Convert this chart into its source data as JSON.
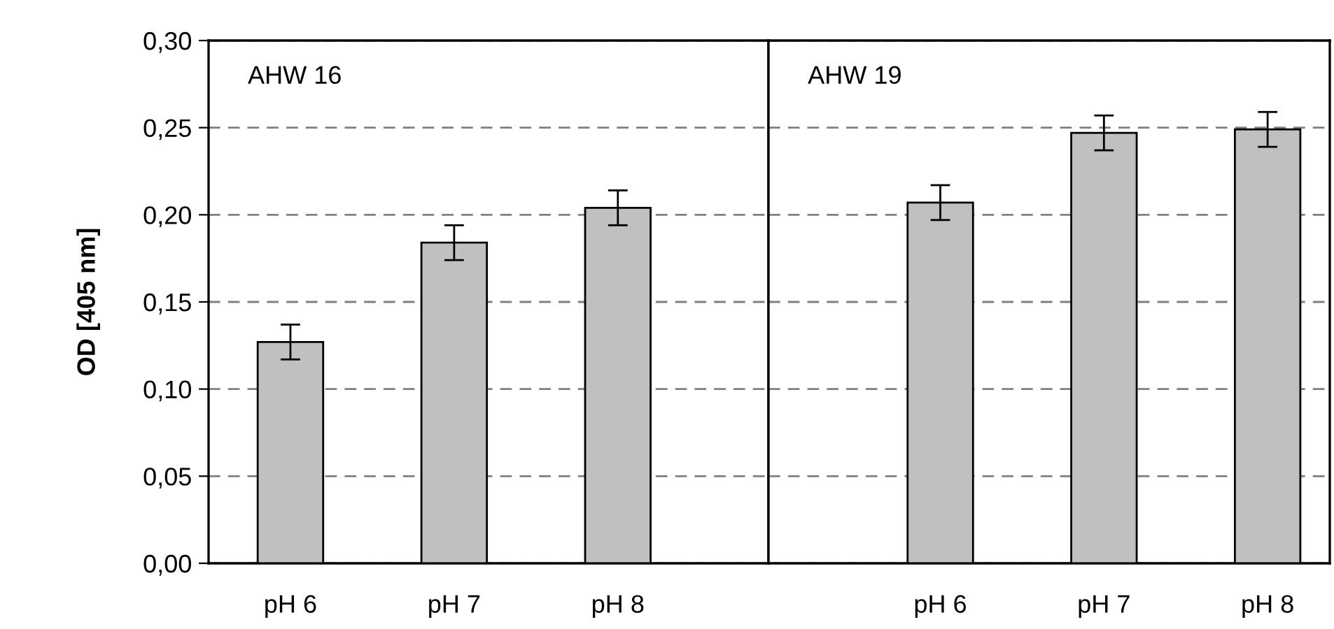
{
  "chart_data": [
    {
      "type": "bar",
      "title": "AHW 16",
      "ylabel": "OD [405 nm]",
      "categories": [
        "pH 6",
        "pH 7",
        "pH 8"
      ],
      "values": [
        0.127,
        0.184,
        0.204
      ],
      "errors": [
        0.01,
        0.01,
        0.01
      ],
      "color": "#c0c0c0",
      "ylim": [
        0,
        0.3
      ],
      "yticks": [
        {
          "value": 0,
          "label": "0,00"
        },
        {
          "value": 0.05,
          "label": "0,05"
        },
        {
          "value": 0.1,
          "label": "0,10"
        },
        {
          "value": 0.15,
          "label": "0,15"
        },
        {
          "value": 0.2,
          "label": "0,20"
        },
        {
          "value": 0.25,
          "label": "0,25"
        },
        {
          "value": 0.3,
          "label": "0,30"
        }
      ],
      "grid": "y"
    },
    {
      "type": "bar",
      "title": "AHW 19",
      "categories": [
        "pH 6",
        "pH 7",
        "pH 8"
      ],
      "values": [
        0.207,
        0.247,
        0.249
      ],
      "errors": [
        0.01,
        0.01,
        0.01
      ],
      "color": "#c0c0c0",
      "ylim": [
        0,
        0.3
      ],
      "yticks": [
        {
          "value": 0,
          "label": null
        },
        {
          "value": 0.05,
          "label": null
        },
        {
          "value": 0.1,
          "label": null
        },
        {
          "value": 0.15,
          "label": null
        },
        {
          "value": 0.2,
          "label": null
        },
        {
          "value": 0.25,
          "label": null
        },
        {
          "value": 0.3,
          "label": null
        }
      ],
      "grid": "y",
      "tick_labels": "x"
    }
  ]
}
